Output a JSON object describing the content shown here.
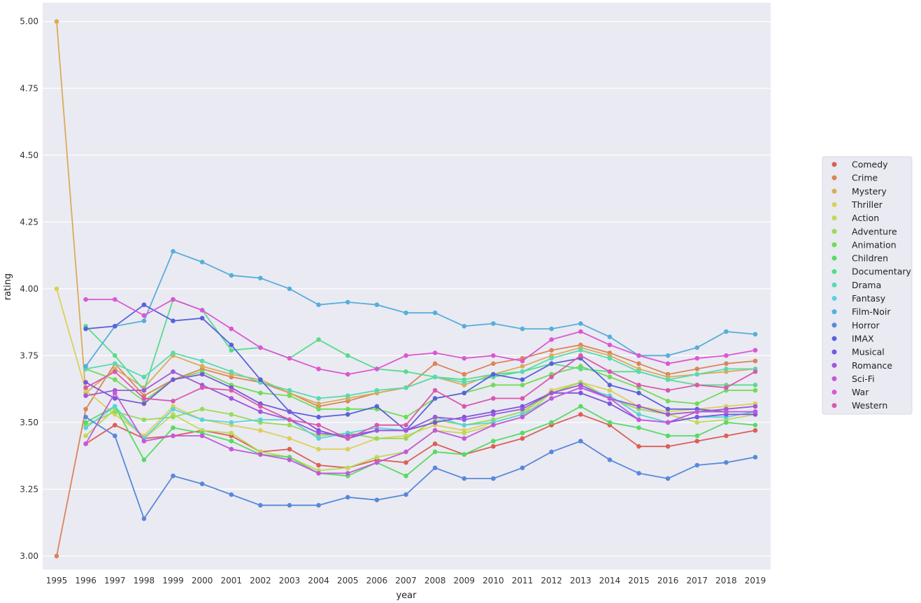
{
  "chart_data": {
    "type": "line",
    "title": "",
    "xlabel": "year",
    "ylabel": "rating",
    "ylim": [
      2.95,
      5.07
    ],
    "yticks": [
      "3.00",
      "3.25",
      "3.50",
      "3.75",
      "4.00",
      "4.25",
      "4.50",
      "4.75",
      "5.00"
    ],
    "grid": true,
    "legend": "right",
    "categories": [
      "1995",
      "1996",
      "1997",
      "1998",
      "1999",
      "2000",
      "2001",
      "2002",
      "2003",
      "2004",
      "2005",
      "2006",
      "2007",
      "2008",
      "2009",
      "2010",
      "2011",
      "2012",
      "2013",
      "2014",
      "2015",
      "2016",
      "2017",
      "2018",
      "2019"
    ],
    "series": [
      {
        "name": "Comedy",
        "color": "#db5f57",
        "values": [
          null,
          3.42,
          3.49,
          3.44,
          3.45,
          3.47,
          3.45,
          3.39,
          3.4,
          3.34,
          3.33,
          3.36,
          3.35,
          3.42,
          3.38,
          3.41,
          3.44,
          3.49,
          3.53,
          3.49,
          3.41,
          3.41,
          3.43,
          3.45,
          3.47
        ]
      },
      {
        "name": "Crime",
        "color": "#db8557",
        "values": [
          3.0,
          3.55,
          3.72,
          3.6,
          3.66,
          3.7,
          3.67,
          3.65,
          3.61,
          3.56,
          3.58,
          3.61,
          3.63,
          3.72,
          3.68,
          3.72,
          3.74,
          3.77,
          3.79,
          3.76,
          3.72,
          3.68,
          3.7,
          3.72,
          3.73
        ]
      },
      {
        "name": "Mystery",
        "color": "#dbab57",
        "values": [
          5.0,
          3.61,
          3.7,
          3.63,
          3.75,
          3.71,
          3.68,
          3.66,
          3.61,
          3.57,
          3.59,
          3.61,
          3.63,
          3.67,
          3.64,
          3.68,
          3.71,
          3.75,
          3.78,
          3.75,
          3.7,
          3.67,
          3.68,
          3.69,
          3.7
        ]
      },
      {
        "name": "Thriller",
        "color": "#dbd057",
        "values": [
          4.0,
          3.62,
          3.53,
          3.45,
          3.56,
          3.51,
          3.49,
          3.47,
          3.44,
          3.4,
          3.4,
          3.44,
          3.45,
          3.49,
          3.47,
          3.5,
          3.53,
          3.62,
          3.65,
          3.62,
          3.56,
          3.54,
          3.55,
          3.56,
          3.57
        ]
      },
      {
        "name": "Action",
        "color": "#bcdb57",
        "values": [
          null,
          3.45,
          3.55,
          3.44,
          3.53,
          3.47,
          3.46,
          3.39,
          3.37,
          3.32,
          3.33,
          3.37,
          3.39,
          3.47,
          3.46,
          3.49,
          3.52,
          3.61,
          3.64,
          3.59,
          3.55,
          3.53,
          3.5,
          3.51,
          3.53
        ]
      },
      {
        "name": "Adventure",
        "color": "#96db57",
        "values": [
          null,
          3.49,
          3.54,
          3.51,
          3.52,
          3.55,
          3.53,
          3.5,
          3.49,
          3.45,
          3.46,
          3.44,
          3.44,
          3.51,
          3.49,
          3.51,
          3.54,
          3.61,
          3.65,
          3.59,
          3.55,
          3.53,
          3.54,
          3.55,
          3.56
        ]
      },
      {
        "name": "Animation",
        "color": "#70db57",
        "values": [
          null,
          3.7,
          3.66,
          3.58,
          3.66,
          3.69,
          3.64,
          3.61,
          3.6,
          3.55,
          3.55,
          3.55,
          3.52,
          3.59,
          3.61,
          3.64,
          3.64,
          3.68,
          3.71,
          3.67,
          3.63,
          3.58,
          3.57,
          3.62,
          3.62
        ]
      },
      {
        "name": "Children",
        "color": "#57db63",
        "values": [
          null,
          3.5,
          3.56,
          3.36,
          3.48,
          3.46,
          3.43,
          3.38,
          3.37,
          3.31,
          3.3,
          3.35,
          3.3,
          3.39,
          3.38,
          3.43,
          3.46,
          3.5,
          3.56,
          3.5,
          3.48,
          3.45,
          3.45,
          3.5,
          3.49
        ]
      },
      {
        "name": "Documentary",
        "color": "#57db89",
        "values": [
          null,
          3.86,
          3.75,
          3.62,
          3.96,
          3.92,
          3.77,
          3.78,
          3.74,
          3.81,
          3.75,
          3.7,
          3.69,
          3.67,
          3.66,
          3.68,
          3.69,
          3.72,
          3.7,
          3.69,
          3.69,
          3.66,
          3.64,
          3.64,
          3.64
        ]
      },
      {
        "name": "Drama",
        "color": "#57dbaf",
        "values": [
          null,
          3.7,
          3.72,
          3.67,
          3.76,
          3.73,
          3.69,
          3.65,
          3.62,
          3.59,
          3.6,
          3.62,
          3.63,
          3.67,
          3.65,
          3.67,
          3.69,
          3.74,
          3.77,
          3.74,
          3.69,
          3.66,
          3.68,
          3.7,
          3.7
        ]
      },
      {
        "name": "Fantasy",
        "color": "#57d4db",
        "values": [
          null,
          3.48,
          3.56,
          3.44,
          3.55,
          3.51,
          3.5,
          3.51,
          3.51,
          3.44,
          3.46,
          3.48,
          3.47,
          3.52,
          3.49,
          3.5,
          3.53,
          3.59,
          3.63,
          3.6,
          3.53,
          3.5,
          3.52,
          3.52,
          3.54
        ]
      },
      {
        "name": "Film-Noir",
        "color": "#57aedb",
        "values": [
          null,
          3.71,
          3.86,
          3.88,
          4.14,
          4.1,
          4.05,
          4.04,
          4.0,
          3.94,
          3.95,
          3.94,
          3.91,
          3.91,
          3.86,
          3.87,
          3.85,
          3.85,
          3.87,
          3.82,
          3.75,
          3.75,
          3.78,
          3.84,
          3.83
        ]
      },
      {
        "name": "Horror",
        "color": "#5788db",
        "values": [
          null,
          3.52,
          3.45,
          3.14,
          3.3,
          3.27,
          3.23,
          3.19,
          3.19,
          3.19,
          3.22,
          3.21,
          3.23,
          3.33,
          3.29,
          3.29,
          3.33,
          3.39,
          3.43,
          3.36,
          3.31,
          3.29,
          3.34,
          3.35,
          3.37
        ]
      },
      {
        "name": "IMAX",
        "color": "#5762db",
        "values": [
          null,
          3.85,
          3.86,
          3.94,
          3.88,
          3.89,
          3.79,
          3.66,
          3.54,
          3.52,
          3.53,
          3.56,
          3.47,
          3.59,
          3.61,
          3.68,
          3.66,
          3.72,
          3.74,
          3.64,
          3.61,
          3.55,
          3.55,
          3.54,
          3.54
        ]
      },
      {
        "name": "Musical",
        "color": "#7957db",
        "values": [
          null,
          3.65,
          3.59,
          3.57,
          3.66,
          3.68,
          3.63,
          3.57,
          3.54,
          3.47,
          3.44,
          3.47,
          3.47,
          3.5,
          3.52,
          3.54,
          3.56,
          3.61,
          3.61,
          3.57,
          3.51,
          3.5,
          3.52,
          3.53,
          3.53
        ]
      },
      {
        "name": "Romance",
        "color": "#9f57db",
        "values": [
          null,
          3.6,
          3.62,
          3.62,
          3.69,
          3.64,
          3.59,
          3.54,
          3.51,
          3.46,
          3.45,
          3.47,
          3.47,
          3.52,
          3.51,
          3.53,
          3.55,
          3.61,
          3.64,
          3.59,
          3.56,
          3.53,
          3.54,
          3.55,
          3.56
        ]
      },
      {
        "name": "Sci-Fi",
        "color": "#c557db",
        "values": [
          null,
          3.42,
          3.61,
          3.43,
          3.45,
          3.45,
          3.4,
          3.38,
          3.36,
          3.31,
          3.31,
          3.35,
          3.39,
          3.47,
          3.44,
          3.49,
          3.52,
          3.59,
          3.63,
          3.59,
          3.51,
          3.5,
          3.54,
          3.54,
          3.54
        ]
      },
      {
        "name": "War",
        "color": "#db57d3",
        "values": [
          null,
          3.96,
          3.96,
          3.9,
          3.96,
          3.92,
          3.85,
          3.78,
          3.74,
          3.7,
          3.68,
          3.7,
          3.75,
          3.76,
          3.74,
          3.75,
          3.73,
          3.81,
          3.84,
          3.79,
          3.75,
          3.72,
          3.74,
          3.75,
          3.77
        ]
      },
      {
        "name": "Western",
        "color": "#db57ad",
        "values": [
          null,
          3.63,
          3.69,
          3.59,
          3.58,
          3.63,
          3.62,
          3.56,
          3.51,
          3.49,
          3.44,
          3.49,
          3.49,
          3.62,
          3.56,
          3.59,
          3.59,
          3.67,
          3.75,
          3.69,
          3.64,
          3.62,
          3.64,
          3.63,
          3.69
        ]
      }
    ]
  }
}
